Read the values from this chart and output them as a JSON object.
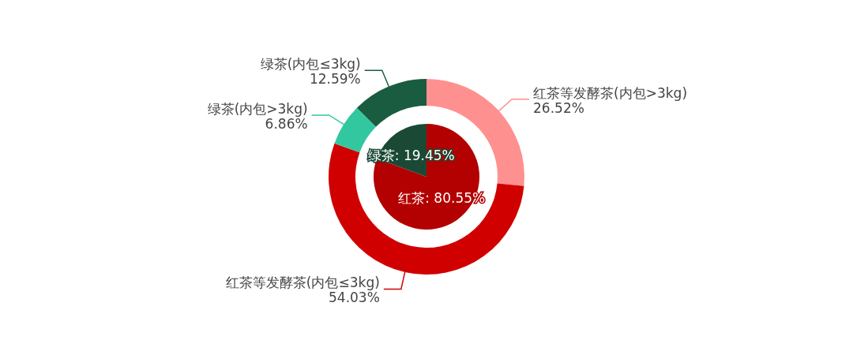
{
  "chart_data": [
    {
      "type": "pie",
      "categories": [
        "红茶",
        "绿茶"
      ],
      "values": [
        80.55,
        19.45
      ],
      "colors": [
        "#b30000",
        "#1a4a35"
      ],
      "value_labels": [
        "80.55%",
        "19.45%"
      ]
    },
    {
      "type": "donut",
      "categories": [
        "红茶等发酵茶(内包>3kg)",
        "红茶等发酵茶(内包≤3kg)",
        "绿茶(内包>3kg)",
        "绿茶(内包≤3kg)"
      ],
      "values": [
        26.52,
        54.03,
        6.86,
        12.59
      ],
      "colors": [
        "#ff9090",
        "#d10000",
        "#33c7a0",
        "#1a5c3f"
      ],
      "value_labels": [
        "26.52%",
        "54.03%",
        "6.86%",
        "12.59%"
      ]
    }
  ]
}
